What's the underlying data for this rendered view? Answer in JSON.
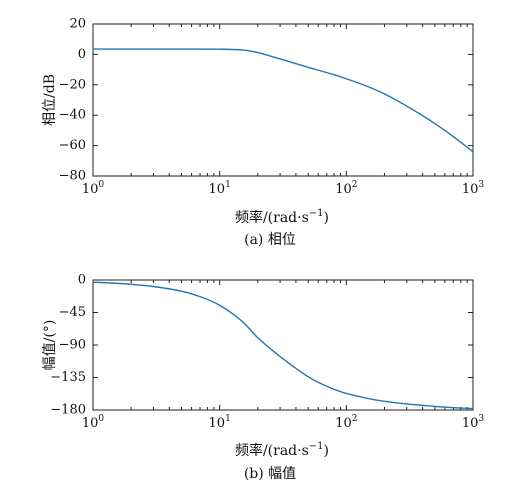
{
  "chart_data": [
    {
      "type": "line",
      "title": "",
      "caption": "(a) 相位",
      "xlabel": "频率/(rad·s",
      "xlabel_sup": "−1",
      "xlabel_close": ")",
      "ylabel": "相位/dB",
      "xscale": "log",
      "xlim": [
        1,
        1000
      ],
      "ylim": [
        -80,
        20
      ],
      "xticks": [
        1,
        10,
        100,
        1000
      ],
      "xtick_labels": [
        {
          "base": "10",
          "exp": "0"
        },
        {
          "base": "10",
          "exp": "1"
        },
        {
          "base": "10",
          "exp": "2"
        },
        {
          "base": "10",
          "exp": "3"
        }
      ],
      "yticks": [
        20,
        0,
        -20,
        -40,
        -60,
        -80
      ],
      "ytick_labels": [
        "20",
        "0",
        "−20",
        "−40",
        "−60",
        "−80"
      ],
      "grid": false,
      "color": "#1f77b4",
      "series": [
        {
          "x": [
            1,
            2,
            5,
            10,
            15,
            20,
            30,
            50,
            70,
            100,
            200,
            500,
            1000
          ],
          "values": [
            3.5,
            3.5,
            3.5,
            3.4,
            2.9,
            1.2,
            -3.0,
            -8.5,
            -12.0,
            -16.0,
            -26.0,
            -45.5,
            -64.0
          ]
        }
      ]
    },
    {
      "type": "line",
      "title": "",
      "caption": "(b) 幅值",
      "xlabel": "频率/(rad·s",
      "xlabel_sup": "−1",
      "xlabel_close": ")",
      "ylabel": "幅值/(°)",
      "xscale": "log",
      "xlim": [
        1,
        1000
      ],
      "ylim": [
        -180,
        0
      ],
      "xticks": [
        1,
        10,
        100,
        1000
      ],
      "xtick_labels": [
        {
          "base": "10",
          "exp": "0"
        },
        {
          "base": "10",
          "exp": "1"
        },
        {
          "base": "10",
          "exp": "2"
        },
        {
          "base": "10",
          "exp": "3"
        }
      ],
      "yticks": [
        0,
        -45,
        -90,
        -135,
        -180
      ],
      "ytick_labels": [
        "0",
        "−45",
        "−90",
        "−135",
        "−180"
      ],
      "grid": false,
      "color": "#1f77b4",
      "series": [
        {
          "x": [
            1,
            1.5,
            2,
            3,
            5,
            7,
            10,
            15,
            20,
            30,
            50,
            70,
            100,
            200,
            500,
            1000
          ],
          "values": [
            -3,
            -4.5,
            -6,
            -9,
            -15.5,
            -23,
            -35,
            -57,
            -80,
            -106,
            -134,
            -147,
            -157,
            -168,
            -175,
            -178
          ]
        }
      ]
    }
  ]
}
